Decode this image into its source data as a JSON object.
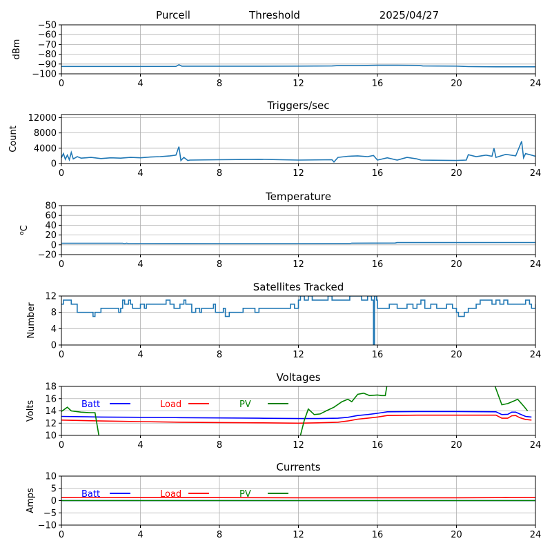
{
  "header": {
    "station": "Purcell",
    "label": "Threshold",
    "date": "2025/04/27"
  },
  "chart_data": [
    {
      "type": "line",
      "title": "",
      "ylabel": "dBm",
      "xlim": [
        0,
        24
      ],
      "ylim": [
        -100,
        -50
      ],
      "xticks": [
        0,
        4,
        8,
        12,
        16,
        20,
        24
      ],
      "yticks": [
        -100,
        -90,
        -80,
        -70,
        -60,
        -50
      ],
      "grid": true,
      "series": [
        {
          "color": "#1f77b4",
          "x": [
            0,
            2,
            4,
            5.8,
            5.95,
            6.1,
            6.3,
            8,
            10,
            12,
            13.7,
            14,
            15,
            16,
            17,
            18.1,
            18.3,
            20,
            20.6,
            21,
            22,
            23,
            24
          ],
          "y": [
            -92.5,
            -92.5,
            -92.5,
            -92.4,
            -90.8,
            -92.2,
            -92.2,
            -92.2,
            -92.2,
            -92.1,
            -92,
            -91.6,
            -91.6,
            -91.3,
            -91.3,
            -91.4,
            -92,
            -92.1,
            -92.6,
            -92.7,
            -92.8,
            -92.8,
            -92.8
          ]
        }
      ]
    },
    {
      "type": "line",
      "title": "Triggers/sec",
      "ylabel": "Count",
      "xlim": [
        0,
        24
      ],
      "ylim": [
        0,
        12800
      ],
      "xticks": [
        0,
        4,
        8,
        12,
        16,
        20,
        24
      ],
      "yticks": [
        0,
        4000,
        8000,
        12000
      ],
      "grid": true,
      "series": [
        {
          "color": "#1f77b4",
          "x": [
            0,
            0.1,
            0.2,
            0.3,
            0.4,
            0.5,
            0.6,
            0.8,
            1,
            1.5,
            2,
            2.5,
            3,
            3.5,
            4,
            4.5,
            5,
            5.5,
            5.8,
            5.95,
            6.05,
            6.2,
            6.4,
            6.5,
            8,
            10,
            12,
            13.7,
            13.8,
            14,
            14.5,
            15,
            15.5,
            15.8,
            16,
            16.5,
            17,
            17.5,
            18,
            18.2,
            20,
            20.5,
            20.6,
            21,
            21.5,
            21.8,
            21.9,
            22,
            22.5,
            23,
            23.3,
            23.4,
            23.5,
            23.8,
            24
          ],
          "y": [
            1500,
            2600,
            1100,
            2200,
            1000,
            2900,
            1200,
            1800,
            1400,
            1600,
            1300,
            1500,
            1400,
            1600,
            1500,
            1700,
            1800,
            2000,
            2200,
            4400,
            800,
            1600,
            800,
            900,
            1000,
            1100,
            900,
            1000,
            400,
            1600,
            1900,
            2000,
            1800,
            2100,
            900,
            1500,
            900,
            1600,
            1200,
            900,
            800,
            900,
            2300,
            1800,
            2200,
            1900,
            4000,
            1600,
            2400,
            2000,
            5800,
            1500,
            2600,
            2200,
            1900
          ]
        }
      ]
    },
    {
      "type": "line",
      "title": "Temperature",
      "ylabel": "°C",
      "ylabel_prefix": "o",
      "ylabel_unit": "C",
      "xlim": [
        0,
        24
      ],
      "ylim": [
        -20,
        80
      ],
      "xticks": [
        0,
        4,
        8,
        12,
        16,
        20,
        24
      ],
      "yticks": [
        -20,
        0,
        20,
        40,
        60,
        80
      ],
      "grid": true,
      "series": [
        {
          "color": "#1f77b4",
          "x": [
            0,
            3.1,
            3.2,
            3.3,
            3.4,
            6,
            8,
            10,
            12,
            14.6,
            14.7,
            16.9,
            17,
            24
          ],
          "y": [
            3.2,
            3.2,
            2.4,
            3.4,
            2.5,
            2.4,
            2.2,
            2.2,
            2.2,
            2.4,
            3.4,
            3.6,
            4.5,
            4.6
          ]
        }
      ]
    },
    {
      "type": "line",
      "title": "Satellites Tracked",
      "ylabel": "Number",
      "xlim": [
        0,
        24
      ],
      "ylim": [
        0,
        12
      ],
      "xticks": [
        0,
        4,
        8,
        12,
        16,
        20,
        24
      ],
      "yticks": [
        0,
        4,
        8,
        12
      ],
      "grid": true,
      "step": true,
      "series": [
        {
          "color": "#1f77b4",
          "x": [
            0,
            0.1,
            0.3,
            0.5,
            0.6,
            0.8,
            1.5,
            1.6,
            1.7,
            1.8,
            2,
            2.1,
            2.2,
            2.8,
            2.9,
            3,
            3.1,
            3.2,
            3.4,
            3.5,
            3.6,
            3.8,
            4,
            4.2,
            4.3,
            4.5,
            5,
            5.2,
            5.3,
            5.5,
            5.6,
            5.7,
            6,
            6.2,
            6.3,
            6.5,
            6.6,
            6.8,
            7,
            7.1,
            7.3,
            7.5,
            7.7,
            7.8,
            8,
            8.2,
            8.3,
            8.5,
            8.6,
            9,
            9.2,
            9.5,
            9.8,
            10,
            10.5,
            11,
            11.4,
            11.6,
            11.8,
            12,
            12.1,
            12.3,
            12.5,
            12.7,
            12.9,
            13.1,
            13.3,
            13.5,
            13.7,
            14,
            14.3,
            14.6,
            15,
            15.2,
            15.5,
            15.7,
            15.8,
            15.85,
            15.95,
            16,
            16.3,
            16.6,
            17,
            17.3,
            17.5,
            17.8,
            18,
            18.2,
            18.4,
            18.7,
            19,
            19.2,
            19.5,
            19.8,
            20,
            20.1,
            20.4,
            20.6,
            20.9,
            21,
            21.2,
            21.5,
            21.8,
            22,
            22.2,
            22.4,
            22.6,
            22.9,
            23.1,
            23.3,
            23.5,
            23.7,
            23.8,
            24
          ],
          "y": [
            10,
            11,
            11,
            10,
            10,
            8,
            8,
            7,
            8,
            8,
            9,
            9,
            9,
            9,
            8,
            9,
            11,
            10,
            11,
            10,
            9,
            9,
            10,
            9,
            10,
            10,
            10,
            10,
            11,
            10,
            10,
            9,
            10,
            11,
            10,
            10,
            8,
            9,
            8,
            9,
            9,
            9,
            10,
            8,
            8,
            9,
            7,
            8,
            8,
            8,
            9,
            9,
            8,
            9,
            9,
            9,
            9,
            10,
            9,
            11,
            12,
            11,
            12,
            11,
            11,
            11,
            11,
            12,
            11,
            11,
            11,
            12,
            12,
            11,
            12,
            11,
            0,
            12,
            11,
            9,
            9,
            10,
            9,
            9,
            10,
            9,
            10,
            11,
            9,
            10,
            9,
            9,
            10,
            9,
            8,
            7,
            8,
            9,
            9,
            10,
            11,
            11,
            10,
            11,
            10,
            11,
            10,
            10,
            10,
            10,
            11,
            10,
            9,
            10
          ]
        }
      ]
    },
    {
      "type": "line",
      "title": "Voltages",
      "ylabel": "Volts",
      "xlim": [
        0,
        24
      ],
      "ylim": [
        10,
        18
      ],
      "xticks": [
        0,
        4,
        8,
        12,
        16,
        20,
        24
      ],
      "yticks": [
        10,
        12,
        14,
        16,
        18
      ],
      "grid": true,
      "legend": "top-left inline",
      "series": [
        {
          "name": "Batt",
          "color": "#0000ff",
          "x": [
            0,
            2,
            4,
            6,
            8,
            10,
            12,
            13,
            14,
            14.5,
            15,
            15.5,
            16,
            16.5,
            18,
            20,
            22,
            22.3,
            22.6,
            22.8,
            23,
            23.2,
            23.5,
            23.8
          ],
          "y": [
            13.1,
            13.0,
            12.95,
            12.9,
            12.85,
            12.8,
            12.75,
            12.75,
            12.8,
            12.95,
            13.25,
            13.4,
            13.6,
            13.85,
            13.9,
            13.9,
            13.85,
            13.4,
            13.45,
            13.8,
            13.8,
            13.5,
            13.1,
            13.0
          ]
        },
        {
          "name": "Load",
          "color": "#ff0000",
          "x": [
            0,
            2,
            4,
            6,
            8,
            10,
            12,
            13,
            14,
            14.5,
            15,
            15.5,
            16,
            16.5,
            18,
            20,
            22,
            22.3,
            22.6,
            22.8,
            23,
            23.2,
            23.5,
            23.8
          ],
          "y": [
            12.5,
            12.35,
            12.25,
            12.15,
            12.1,
            12.05,
            12.0,
            12.05,
            12.15,
            12.35,
            12.65,
            12.8,
            13.0,
            13.25,
            13.3,
            13.3,
            13.3,
            12.8,
            12.8,
            13.2,
            13.25,
            12.9,
            12.6,
            12.5
          ]
        },
        {
          "name": "PV",
          "color": "#008000",
          "x": [
            0,
            0.3,
            0.5,
            1,
            1.5,
            1.7,
            2.0,
            12.0,
            12.1,
            12.3,
            12.5,
            12.8,
            13.1,
            13.4,
            13.8,
            14.2,
            14.5,
            14.7,
            15,
            15.3,
            15.6,
            16,
            16.2,
            16.4,
            16.5,
            21.9,
            22.0,
            22.3,
            22.6,
            22.9,
            23.1,
            23.4,
            23.6
          ],
          "y": [
            13.9,
            14.6,
            14.0,
            13.8,
            13.7,
            13.7,
            8.0,
            8.0,
            10.0,
            12.5,
            14.3,
            13.4,
            13.5,
            14.0,
            14.6,
            15.5,
            15.9,
            15.5,
            16.7,
            16.9,
            16.5,
            16.6,
            16.5,
            16.5,
            18.5,
            18.5,
            17.6,
            15.0,
            15.2,
            15.6,
            15.9,
            14.8,
            14.0
          ]
        }
      ]
    },
    {
      "type": "line",
      "title": "Currents",
      "ylabel": "Amps",
      "xlim": [
        0,
        24
      ],
      "ylim": [
        -10,
        10
      ],
      "xticks": [
        0,
        4,
        8,
        12,
        16,
        20,
        24
      ],
      "yticks": [
        -10,
        -5,
        0,
        5,
        10
      ],
      "grid": true,
      "legend": "top-left inline",
      "series": [
        {
          "name": "Batt",
          "color": "#0000ff",
          "x": [
            0,
            24
          ],
          "y": [
            0,
            0
          ]
        },
        {
          "name": "Load",
          "color": "#ff0000",
          "x": [
            0,
            4,
            8,
            12,
            16,
            20,
            22,
            22.5,
            23,
            23.5,
            24
          ],
          "y": [
            1.25,
            1.2,
            1.2,
            1.15,
            1.15,
            1.15,
            1.2,
            1.3,
            1.2,
            1.3,
            1.3
          ]
        },
        {
          "name": "PV",
          "color": "#008000",
          "x": [
            0,
            24
          ],
          "y": [
            0,
            0
          ]
        }
      ]
    }
  ]
}
